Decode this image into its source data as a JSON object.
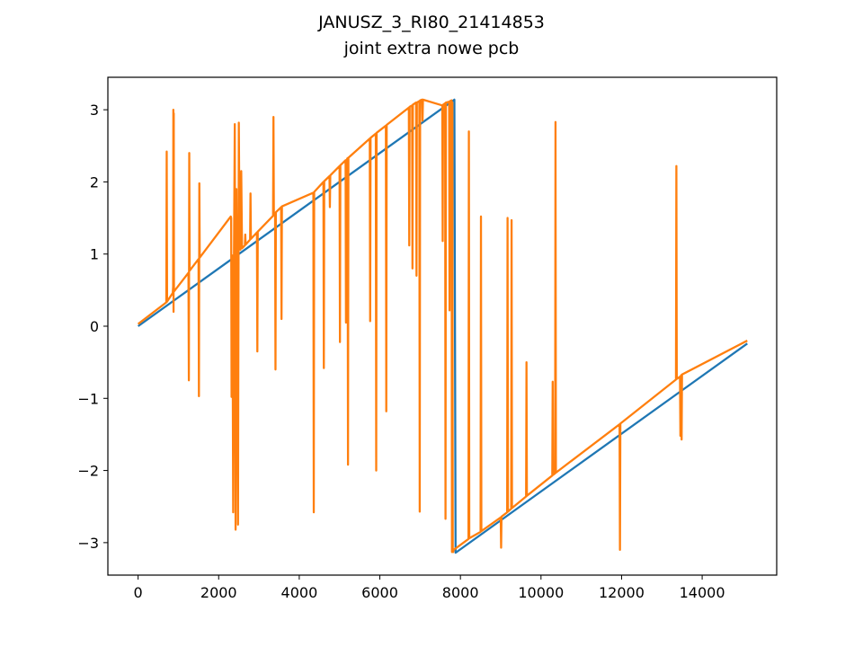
{
  "chart_data": {
    "type": "line",
    "title": "JANUSZ_3_RI80_21414853",
    "subtitle": "joint extra nowe pcb",
    "xlabel": "",
    "ylabel": "",
    "xlim": [
      -750,
      15850
    ],
    "ylim": [
      -3.45,
      3.45
    ],
    "grid": false,
    "xticks": [
      0,
      2000,
      4000,
      6000,
      8000,
      10000,
      12000,
      14000
    ],
    "xtick_labels": [
      "0",
      "2000",
      "4000",
      "6000",
      "8000",
      "10000",
      "12000",
      "14000"
    ],
    "yticks": [
      -3,
      -2,
      -1,
      0,
      1,
      2,
      3
    ],
    "ytick_labels": [
      "−3",
      "−2",
      "−1",
      "0",
      "1",
      "2",
      "3"
    ],
    "series": [
      {
        "color": "#1f77b4",
        "x": [
          0,
          7850,
          7880,
          15120
        ],
        "y": [
          0.0,
          3.14,
          -3.14,
          -0.24
        ]
      },
      {
        "color": "#ff7f0e",
        "x": [
          0,
          700,
          710,
          720,
          730,
          860,
          870,
          875,
          880,
          885,
          890,
          1250,
          1260,
          1270,
          1280,
          1500,
          1510,
          1520,
          1530,
          2300,
          2310,
          2320,
          2340,
          2360,
          2380,
          2400,
          2420,
          2440,
          2460,
          2480,
          2500,
          2520,
          2540,
          2560,
          2580,
          2650,
          2660,
          2670,
          2780,
          2790,
          2800,
          2950,
          2960,
          2970,
          3350,
          3360,
          3370,
          3400,
          3410,
          3420,
          3550,
          3560,
          3570,
          4350,
          4360,
          4370,
          4600,
          4610,
          4620,
          4750,
          4760,
          4770,
          5000,
          5010,
          5020,
          5150,
          5160,
          5170,
          5200,
          5210,
          5220,
          5230,
          5750,
          5760,
          5770,
          5900,
          5910,
          5920,
          6150,
          6160,
          6170,
          6720,
          6730,
          6740,
          6800,
          6810,
          6820,
          6900,
          6910,
          6920,
          6980,
          6990,
          7000,
          7050,
          7060,
          7070,
          7550,
          7560,
          7570,
          7620,
          7630,
          7640,
          7720,
          7730,
          7740,
          7780,
          7790,
          7800,
          7810,
          7820,
          7830,
          8200,
          8210,
          8220,
          8500,
          8510,
          8520,
          9000,
          9010,
          9020,
          9160,
          9170,
          9180,
          9260,
          9270,
          9280,
          9630,
          9640,
          9650,
          10280,
          10290,
          10300,
          10350,
          10360,
          10370,
          11950,
          11960,
          11970,
          13350,
          13360,
          13370,
          13450,
          13460,
          13470,
          13480,
          13490,
          13500,
          15120
        ],
        "y": [
          0.03,
          0.33,
          2.42,
          0.34,
          0.35,
          0.46,
          0.55,
          3.0,
          0.2,
          2.95,
          0.48,
          0.74,
          -0.75,
          2.4,
          0.77,
          0.93,
          -0.97,
          1.98,
          0.95,
          1.52,
          1.5,
          -0.98,
          0.98,
          -2.58,
          1.0,
          2.8,
          -2.82,
          1.9,
          -0.08,
          -2.75,
          2.82,
          1.1,
          1.06,
          2.15,
          1.08,
          1.12,
          1.27,
          1.13,
          1.2,
          1.84,
          1.21,
          1.3,
          -0.35,
          1.31,
          1.53,
          2.9,
          1.55,
          1.57,
          -0.6,
          1.58,
          1.65,
          0.1,
          1.66,
          1.85,
          -2.58,
          1.86,
          2.0,
          -0.58,
          2.01,
          2.08,
          1.65,
          2.09,
          2.22,
          -0.22,
          2.23,
          2.3,
          0.05,
          2.3,
          2.33,
          -1.92,
          2.33,
          2.34,
          2.6,
          0.07,
          2.61,
          2.67,
          -2.0,
          2.68,
          2.78,
          -1.18,
          2.79,
          3.03,
          1.12,
          3.04,
          3.06,
          0.8,
          3.07,
          3.1,
          0.7,
          3.1,
          3.12,
          -2.57,
          3.13,
          3.14,
          2.85,
          3.14,
          3.06,
          1.18,
          3.07,
          3.09,
          -2.67,
          3.1,
          3.11,
          0.22,
          3.12,
          3.13,
          -3.13,
          3.1,
          -3.12,
          -3.13,
          -3.1,
          -2.95,
          2.7,
          -2.94,
          -2.85,
          1.52,
          -2.84,
          -2.65,
          -3.07,
          -2.64,
          -2.58,
          1.5,
          -2.57,
          -2.53,
          1.47,
          -2.52,
          -2.36,
          -0.5,
          -2.35,
          -2.07,
          -0.77,
          -2.06,
          -2.04,
          2.83,
          -2.03,
          -1.36,
          -3.1,
          -1.35,
          -0.74,
          2.22,
          -0.73,
          -0.7,
          -1.52,
          -0.69,
          -0.68,
          -1.57,
          -0.67,
          -0.2
        ]
      }
    ]
  }
}
